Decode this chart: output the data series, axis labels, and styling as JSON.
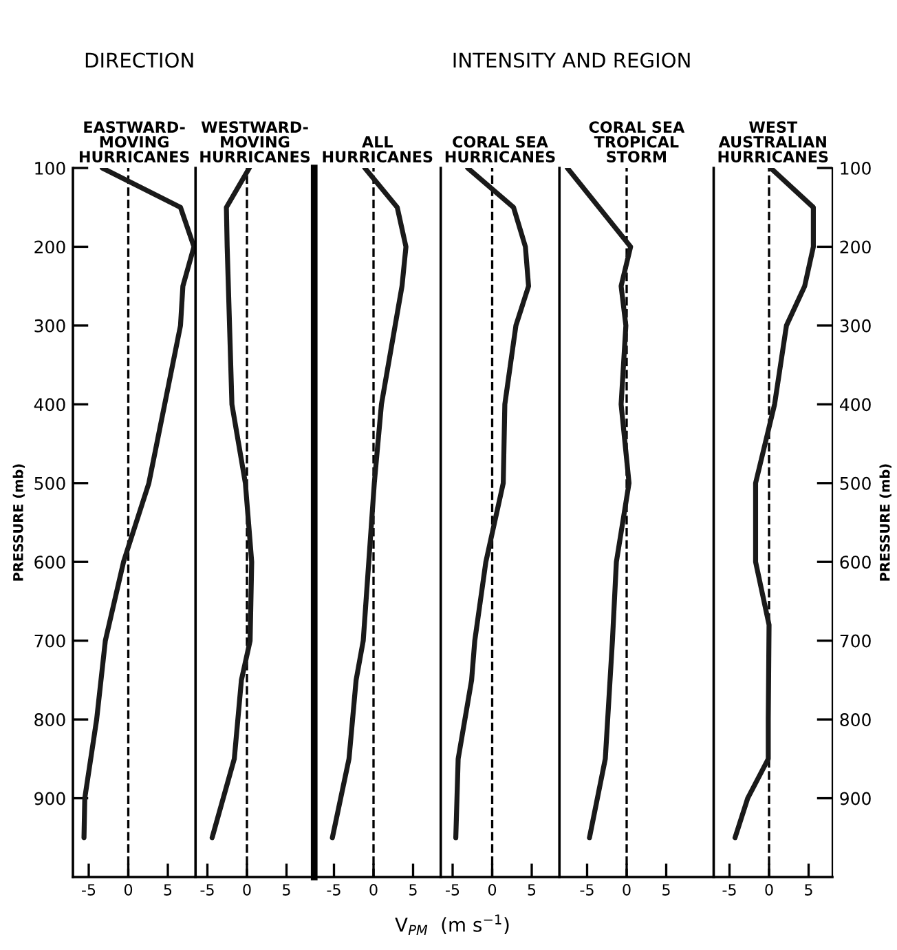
{
  "chart_data": [
    {
      "type": "line",
      "subtitle": "DIRECTION",
      "title": "EASTWARD-\nMOVING\nHURRICANES",
      "ylabel": "PRESSURE (mb)",
      "xlim": [
        -7,
        8.5
      ],
      "xticks": [
        -5,
        0,
        5
      ],
      "ylim": [
        1000,
        100
      ],
      "yticks": [
        100,
        200,
        300,
        400,
        500,
        600,
        700,
        800,
        900
      ],
      "ref_lines": [
        {
          "axis": "x",
          "value": 0,
          "line_style": "dashed",
          "color": "#000000"
        }
      ],
      "grid": false,
      "legend": false,
      "series": [
        {
          "color": "#1a1a1a",
          "x": [
            -3.3,
            6.6,
            8.3,
            6.9,
            6.6,
            2.6,
            -0.6,
            -2.9,
            -4.0,
            -5.5,
            -5.6
          ],
          "values": [
            100,
            150,
            200,
            250,
            300,
            500,
            600,
            700,
            800,
            900,
            950
          ]
        }
      ]
    },
    {
      "type": "line",
      "title": "WESTWARD-\nMOVING\nHURRICANES",
      "xlim": [
        -6.5,
        8.5
      ],
      "xticks": [
        -5,
        0,
        5
      ],
      "ylim": [
        1000,
        100
      ],
      "tick_labels": "x",
      "ref_lines": [
        {
          "axis": "x",
          "value": 0,
          "line_style": "dashed",
          "color": "#000000"
        }
      ],
      "grid": false,
      "legend": false,
      "series": [
        {
          "color": "#1a1a1a",
          "x": [
            0.3,
            -2.6,
            -2.5,
            -1.9,
            -0.2,
            0.6,
            0.4,
            -0.7,
            -1.6,
            -4.4
          ],
          "values": [
            100,
            150,
            200,
            400,
            500,
            600,
            700,
            750,
            850,
            950
          ]
        }
      ]
    },
    {
      "type": "line",
      "title": "ALL\nHURRICANES",
      "xlim": [
        -7.5,
        8.5
      ],
      "xticks": [
        -5,
        0,
        5
      ],
      "ylim": [
        1000,
        100
      ],
      "tick_labels": "x",
      "ref_lines": [
        {
          "axis": "x",
          "value": 0,
          "line_style": "dashed",
          "color": "#000000"
        }
      ],
      "grid": false,
      "legend": false,
      "series": [
        {
          "color": "#1a1a1a",
          "x": [
            -1.1,
            3.0,
            4.1,
            3.6,
            1.0,
            0.1,
            -1.3,
            -2.2,
            -3.1,
            -5.2
          ],
          "values": [
            100,
            150,
            200,
            250,
            400,
            500,
            700,
            750,
            850,
            950
          ]
        }
      ]
    },
    {
      "type": "line",
      "subtitle": "INTENSITY AND REGION",
      "title": "CORAL SEA\nHURRICANES",
      "xlabel": "V$_{PM}$  (m s$^{−1}$)",
      "xlim": [
        -6.5,
        8.5
      ],
      "xticks": [
        -5,
        0,
        5
      ],
      "ylim": [
        1000,
        100
      ],
      "tick_labels": "x",
      "ref_lines": [
        {
          "axis": "x",
          "value": 0,
          "line_style": "dashed",
          "color": "#000000"
        }
      ],
      "grid": false,
      "legend": false,
      "series": [
        {
          "color": "#1a1a1a",
          "x": [
            -3.1,
            2.7,
            4.2,
            4.6,
            3.0,
            1.6,
            1.4,
            -0.8,
            -2.2,
            -2.6,
            -4.3,
            -4.6
          ],
          "values": [
            100,
            150,
            200,
            250,
            300,
            400,
            500,
            600,
            700,
            750,
            850,
            950
          ]
        }
      ]
    },
    {
      "type": "line",
      "title": "CORAL SEA\nTROPICAL\nSTORM",
      "xlim": [
        -8.5,
        11
      ],
      "xticks": [
        -5,
        0,
        5
      ],
      "ylim": [
        1000,
        100
      ],
      "tick_labels": "x",
      "ref_lines": [
        {
          "axis": "x",
          "value": 0,
          "line_style": "dashed",
          "color": "#000000"
        }
      ],
      "grid": false,
      "legend": false,
      "series": [
        {
          "color": "#1a1a1a",
          "x": [
            -7.5,
            0.5,
            -0.7,
            -0.1,
            -0.7,
            0.3,
            -1.3,
            -1.8,
            -2.7,
            -4.7
          ],
          "values": [
            100,
            200,
            250,
            300,
            400,
            500,
            600,
            700,
            850,
            950
          ]
        }
      ]
    },
    {
      "type": "line",
      "title": "WEST\nAUSTRALIAN\nHURRICANES",
      "y2label": "PRESSURE (mb)",
      "xlim": [
        -7,
        8
      ],
      "xticks": [
        -5,
        0,
        5
      ],
      "y2lim": [
        1000,
        100
      ],
      "y2ticks": [
        100,
        200,
        300,
        400,
        500,
        600,
        700,
        800,
        900
      ],
      "ref_lines": [
        {
          "axis": "x",
          "value": 0,
          "line_style": "dashed",
          "color": "#000000"
        }
      ],
      "grid": false,
      "legend": false,
      "series": [
        {
          "color": "#1a1a1a",
          "axis": "y2",
          "x": [
            0.2,
            5.6,
            5.6,
            4.5,
            2.2,
            0.7,
            -1.7,
            -1.7,
            0,
            -0.1,
            -0.1,
            -2.7,
            -4.3
          ],
          "values": [
            100,
            150,
            200,
            250,
            300,
            400,
            500,
            600,
            680,
            800,
            850,
            900,
            950
          ]
        }
      ]
    }
  ]
}
